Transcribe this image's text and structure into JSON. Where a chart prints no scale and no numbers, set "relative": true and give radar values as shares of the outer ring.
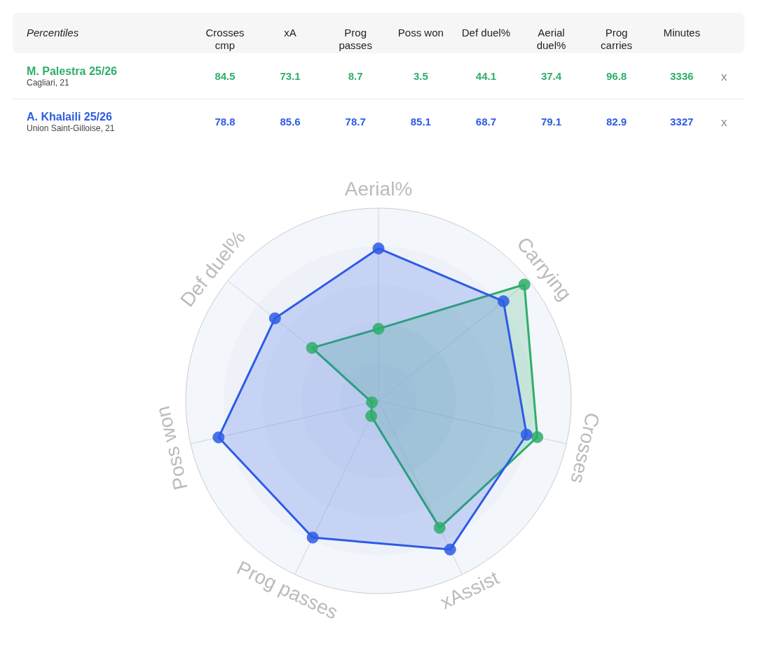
{
  "chart_data": [
    {
      "type": "other",
      "title": "Percentiles",
      "categories": [
        "Crosses\ncmp",
        "xA",
        "Prog\npasses",
        "Poss won",
        "Def duel%",
        "Aerial\nduel%",
        "Prog\ncarries",
        "Minutes"
      ],
      "series": [
        {
          "name": "M. Palestra 25/26",
          "color": "#2fae6a",
          "values": [
            84.5,
            73.1,
            8.7,
            3.5,
            44.1,
            37.4,
            96.8,
            3336
          ]
        },
        {
          "name": "A. Khalaili 25/26",
          "color": "#2d5be6",
          "values": [
            78.8,
            85.6,
            78.7,
            85.1,
            68.7,
            79.1,
            82.9,
            3327
          ]
        }
      ],
      "annotations": [
        "Cagliari, 21",
        "Union Saint-Gilloise, 21",
        "x",
        "x"
      ],
      "data_labels": true
    },
    {
      "type": "radar",
      "categories": [
        "Aerial%",
        "Carrying",
        "Crosses",
        "xAssist",
        "Prog passes",
        "Poss won",
        "Def duel%"
      ],
      "series": [
        {
          "color": "#2fae6a",
          "values": [
            0.374,
            0.968,
            0.845,
            0.731,
            0.087,
            0.035,
            0.441
          ]
        },
        {
          "color": "#2d5be6",
          "values": [
            0.791,
            0.829,
            0.788,
            0.856,
            0.787,
            0.851,
            0.687
          ]
        }
      ],
      "relative": true,
      "grid": true,
      "marker": "circle"
    }
  ]
}
